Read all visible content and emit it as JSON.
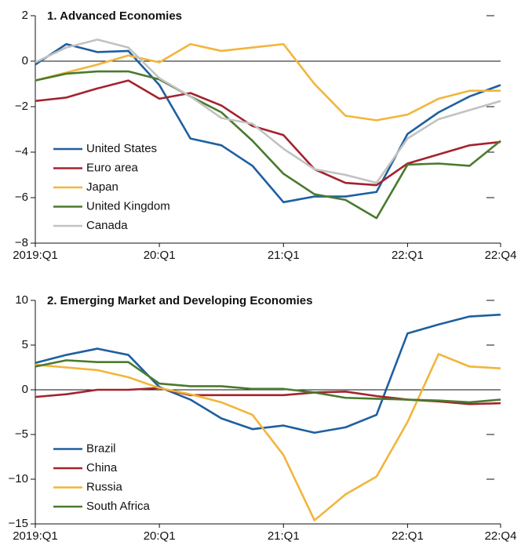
{
  "chart_data": [
    {
      "type": "line",
      "title": "1. Advanced Economies",
      "categories": [
        "2019:Q1",
        null,
        null,
        null,
        "20:Q1",
        null,
        null,
        null,
        "21:Q1",
        null,
        null,
        null,
        "22:Q1",
        null,
        null,
        "22:Q4"
      ],
      "series": [
        {
          "name": "United States",
          "color": "#1f5fa0",
          "values": [
            -0.15,
            0.75,
            0.4,
            0.45,
            -1.05,
            -3.4,
            -3.7,
            -4.6,
            -6.2,
            -5.95,
            -5.95,
            -5.75,
            -3.2,
            -2.25,
            -1.55,
            -1.05
          ]
        },
        {
          "name": "Euro area",
          "color": "#a3232e",
          "values": [
            -1.75,
            -1.6,
            -1.2,
            -0.85,
            -1.65,
            -1.4,
            -1.95,
            -2.85,
            -3.25,
            -4.75,
            -5.35,
            -5.45,
            -4.5,
            -4.1,
            -3.7,
            -3.55
          ]
        },
        {
          "name": "Japan",
          "color": "#f2b53b",
          "values": [
            -0.85,
            -0.5,
            -0.15,
            0.25,
            -0.05,
            0.75,
            0.45,
            0.6,
            0.75,
            -1.0,
            -2.4,
            -2.6,
            -2.35,
            -1.65,
            -1.3,
            -1.3
          ]
        },
        {
          "name": "United Kingdom",
          "color": "#4a7a2e",
          "values": [
            -0.85,
            -0.55,
            -0.45,
            -0.45,
            -0.8,
            -1.55,
            -2.25,
            -3.5,
            -4.95,
            -5.85,
            -6.1,
            -6.9,
            -4.55,
            -4.5,
            -4.6,
            -3.5
          ]
        },
        {
          "name": "Canada",
          "color": "#c2c2c2",
          "values": [
            -0.05,
            0.6,
            0.95,
            0.6,
            -0.75,
            -1.55,
            -2.5,
            -2.75,
            -3.85,
            -4.75,
            -5.0,
            -5.35,
            -3.4,
            -2.55,
            -2.15,
            -1.75
          ]
        }
      ],
      "ylim": [
        -8,
        2
      ],
      "yticks": [
        {
          "value": -8,
          "label": "−8"
        },
        {
          "value": -6,
          "label": "−6"
        },
        {
          "value": -4,
          "label": "−4"
        },
        {
          "value": -2,
          "label": "−2"
        },
        0,
        2
      ],
      "legend": "lower left"
    },
    {
      "type": "line",
      "title": "2. Emerging Market and Developing Economies",
      "categories": [
        "2019:Q1",
        null,
        null,
        null,
        "20:Q1",
        null,
        null,
        null,
        "21:Q1",
        null,
        null,
        null,
        "22:Q1",
        null,
        null,
        "22:Q4"
      ],
      "series": [
        {
          "name": "Brazil",
          "color": "#1f5fa0",
          "values": [
            3.0,
            3.9,
            4.6,
            3.9,
            0.3,
            -1.1,
            -3.2,
            -4.4,
            -4.0,
            -4.8,
            -4.2,
            -2.8,
            6.3,
            7.3,
            8.2,
            8.4
          ]
        },
        {
          "name": "China",
          "color": "#a3232e",
          "values": [
            -0.8,
            -0.5,
            0.0,
            0.0,
            0.2,
            -0.6,
            -0.6,
            -0.6,
            -0.6,
            -0.3,
            -0.2,
            -0.7,
            -1.1,
            -1.3,
            -1.6,
            -1.5
          ]
        },
        {
          "name": "Russia",
          "color": "#f2b53b",
          "values": [
            2.8,
            2.5,
            2.2,
            1.4,
            0.2,
            -0.5,
            -1.4,
            -2.8,
            -7.3,
            -14.6,
            -11.7,
            -9.7,
            -3.6,
            4.0,
            2.6,
            2.4
          ]
        },
        {
          "name": "South Africa",
          "color": "#4a7a2e",
          "values": [
            2.6,
            3.3,
            3.1,
            3.1,
            0.7,
            0.4,
            0.4,
            0.1,
            0.1,
            -0.3,
            -0.9,
            -1.0,
            -1.1,
            -1.2,
            -1.4,
            -1.1
          ]
        }
      ],
      "ylim": [
        -15,
        10
      ],
      "yticks": [
        {
          "value": -15,
          "label": "−15"
        },
        {
          "value": -10,
          "label": "−10"
        },
        {
          "value": -5,
          "label": "−5"
        },
        0,
        5,
        10
      ],
      "legend": "lower left"
    }
  ]
}
